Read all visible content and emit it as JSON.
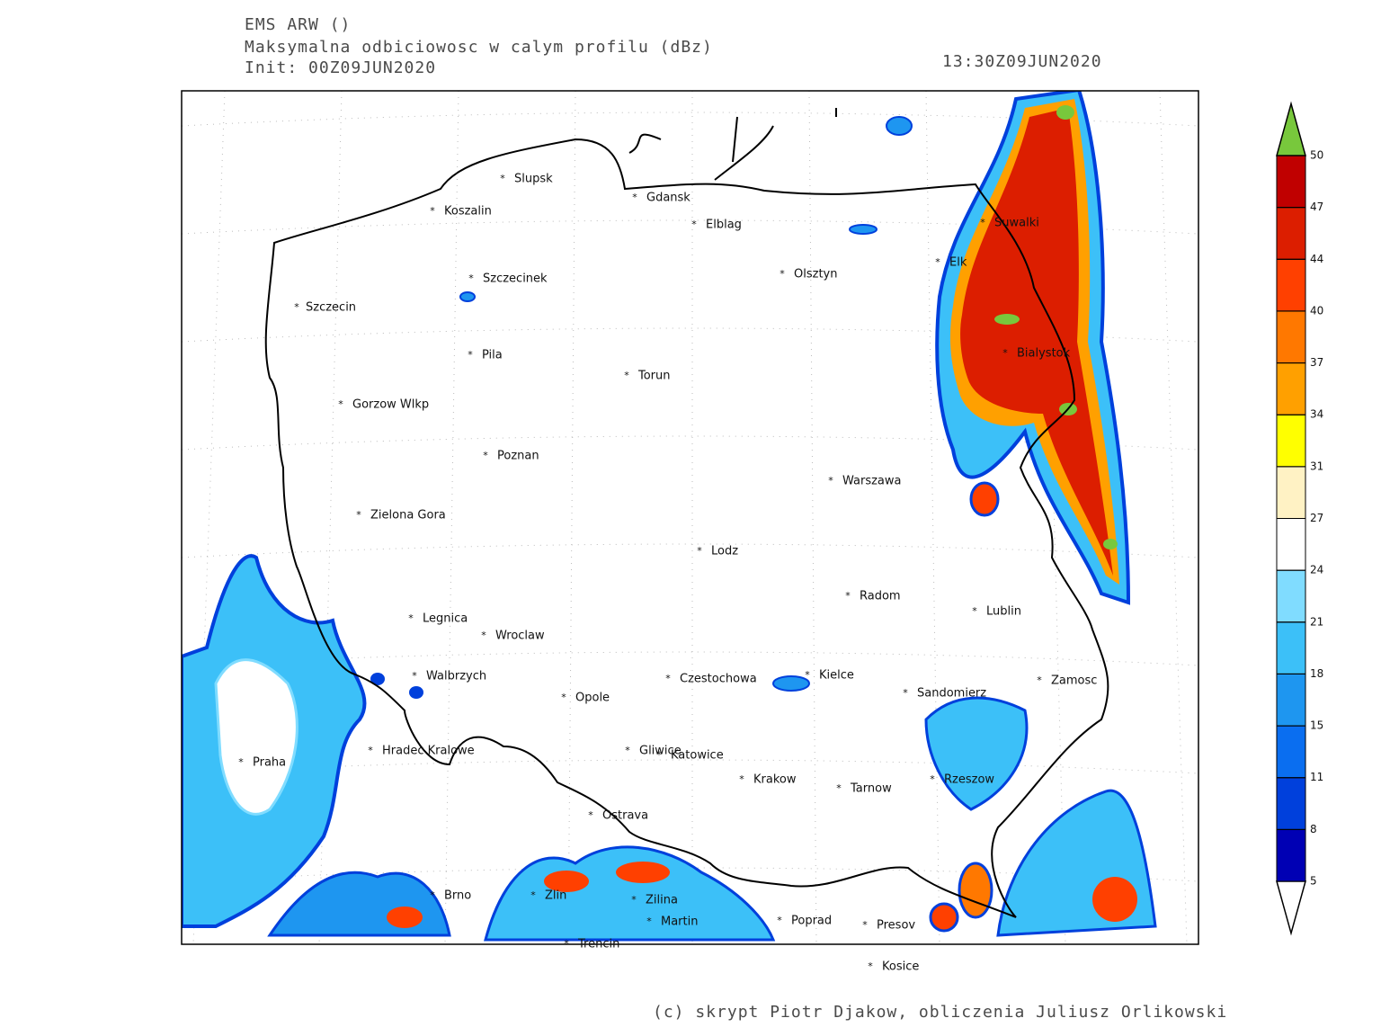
{
  "header": {
    "lines": [
      "EMS ARW ()",
      "Maksymalna odbiciowosc w calym profilu (dBz)",
      "Init: 00Z09JUN2020"
    ],
    "valid_time": "13:30Z09JUN2020"
  },
  "map": {
    "cities": [
      "Slupsk",
      "Koszalin",
      "Gdansk",
      "Elblag",
      "Suwalki",
      "Elk",
      "Olsztyn",
      "Szczecinek",
      "Szczecin",
      "Pila",
      "Bialystok",
      "Torun",
      "Gorzow Wlkp",
      "Poznan",
      "Warszawa",
      "Zielona Gora",
      "Lodz",
      "Radom",
      "Lublin",
      "Legnica",
      "Wroclaw",
      "Walbrzych",
      "Czestochowa",
      "Kielce",
      "Zamosc",
      "Sandomierz",
      "Opole",
      "Praha",
      "Hradec Kralowe",
      "Gliwice",
      "Katowice",
      "Krakow",
      "Tarnow",
      "Rzeszow",
      "Ostrava",
      "Brno",
      "Zlin",
      "Zilina",
      "Martin",
      "Poprad",
      "Presov",
      "Trencin",
      "Kosice"
    ]
  },
  "colorbar": {
    "levels": [
      5,
      8,
      11,
      15,
      18,
      21,
      24,
      27,
      31,
      34,
      37,
      40,
      44,
      47,
      50
    ],
    "colors": [
      "#ffffff",
      "#0000b4",
      "#0040dc",
      "#0a6ef0",
      "#1e96f0",
      "#3cc0f8",
      "#80dcff",
      "#ffffff",
      "#fff2c4",
      "#ffff00",
      "#ffa000",
      "#ff7800",
      "#ff4000",
      "#dc1e00",
      "#c00000",
      "#78c83c"
    ]
  },
  "footer": "(c) skrypt Piotr Djakow, obliczenia Juliusz Orlikowski"
}
